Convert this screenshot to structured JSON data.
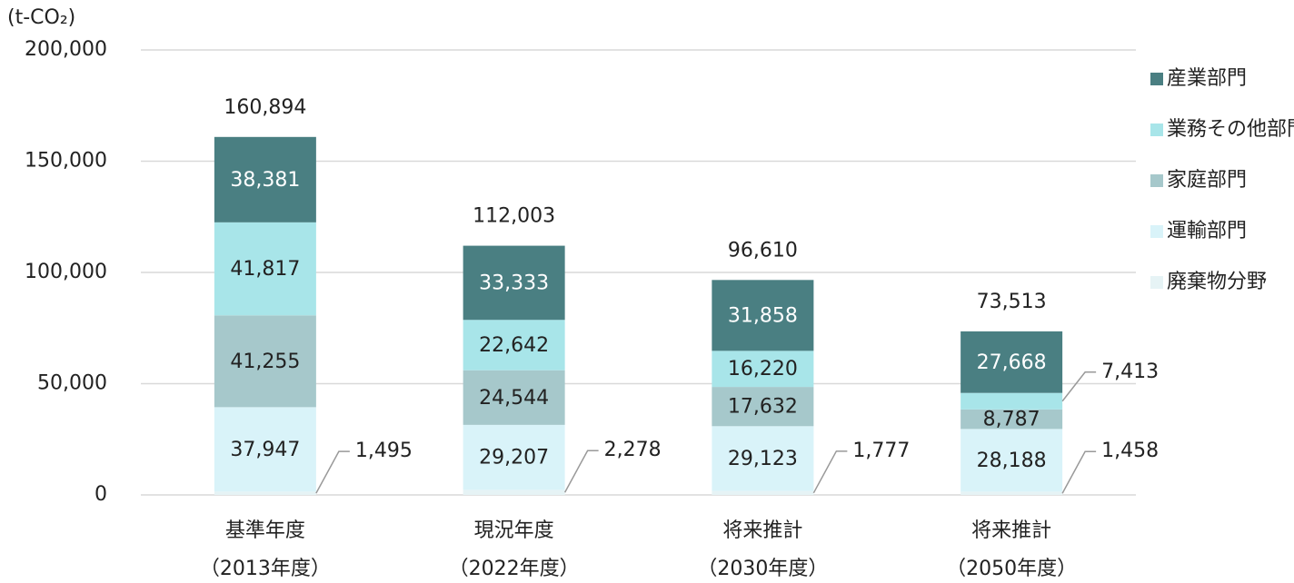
{
  "chart_data": {
    "type": "bar",
    "stacked": true,
    "y_axis_label": "(t-CO₂)",
    "categories": [
      "基準年度",
      "現況年度",
      "将来推計",
      "将来推計"
    ],
    "category_sublabels": [
      "（2013年度）",
      "（2022年度）",
      "（2030年度）",
      "（2050年度）"
    ],
    "series": [
      {
        "name": "廃棄物分野",
        "color": "#e6f3f5",
        "values": [
          1495,
          2278,
          1777,
          1458
        ],
        "value_labels": [
          "1,495",
          "2,278",
          "1,777",
          "1,458"
        ]
      },
      {
        "name": "運輸部門",
        "color": "#d9f3f9",
        "values": [
          37947,
          29207,
          29123,
          28188
        ],
        "value_labels": [
          "37,947",
          "29,207",
          "29,123",
          "28,188"
        ]
      },
      {
        "name": "家庭部門",
        "color": "#a6c8cb",
        "values": [
          41255,
          24544,
          17632,
          8787
        ],
        "value_labels": [
          "41,255",
          "24,544",
          "17,632",
          "8,787"
        ]
      },
      {
        "name": "業務その他部門",
        "color": "#a8e5e9",
        "values": [
          41817,
          22642,
          16220,
          7413
        ],
        "value_labels": [
          "41,817",
          "22,642",
          "16,220",
          "7,413"
        ]
      },
      {
        "name": "産業部門",
        "color": "#4a7f82",
        "values": [
          38381,
          33333,
          31858,
          27668
        ],
        "value_labels": [
          "38,381",
          "33,333",
          "31,858",
          "27,668"
        ]
      }
    ],
    "totals": [
      160894,
      112003,
      96610,
      73513
    ],
    "total_labels": [
      "160,894",
      "112,003",
      "96,610",
      "73,513"
    ],
    "ylim": [
      0,
      200000
    ],
    "yticks": [
      0,
      {
        "value": 50000,
        "label": "50,000"
      },
      {
        "value": 100000,
        "label": "100,000"
      },
      {
        "value": 150000,
        "label": "150,000"
      },
      {
        "value": 200000,
        "label": "200,000"
      }
    ],
    "grid": true,
    "legend": "right"
  }
}
